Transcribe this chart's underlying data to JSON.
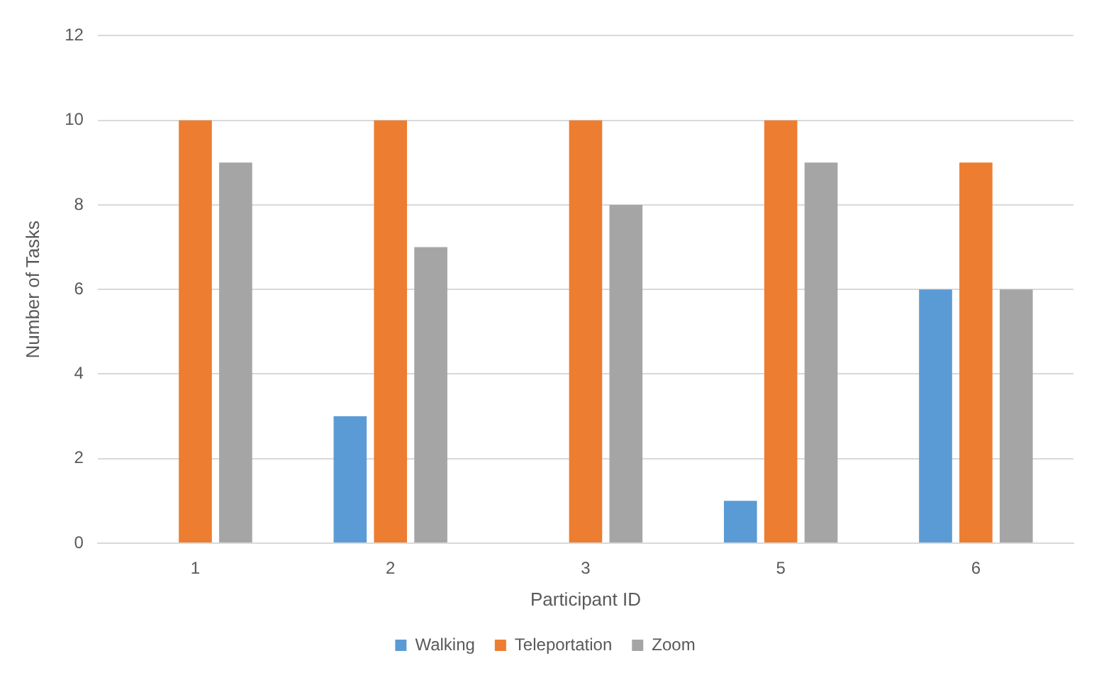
{
  "chart_data": {
    "type": "bar",
    "xlabel": "Participant ID",
    "ylabel": "Number of Tasks",
    "categories": [
      "1",
      "2",
      "3",
      "5",
      "6"
    ],
    "series": [
      {
        "name": "Walking",
        "color": "#5b9bd5",
        "values": [
          0,
          3,
          0,
          1,
          6
        ]
      },
      {
        "name": "Teleportation",
        "color": "#ed7d31",
        "values": [
          10,
          10,
          10,
          10,
          9
        ]
      },
      {
        "name": "Zoom",
        "color": "#a5a5a5",
        "values": [
          9,
          7,
          8,
          9,
          6
        ]
      }
    ],
    "ylim": [
      0,
      12
    ],
    "yticks": [
      0,
      2,
      4,
      6,
      8,
      10,
      12
    ],
    "grid": "y",
    "legend": "bottom"
  }
}
